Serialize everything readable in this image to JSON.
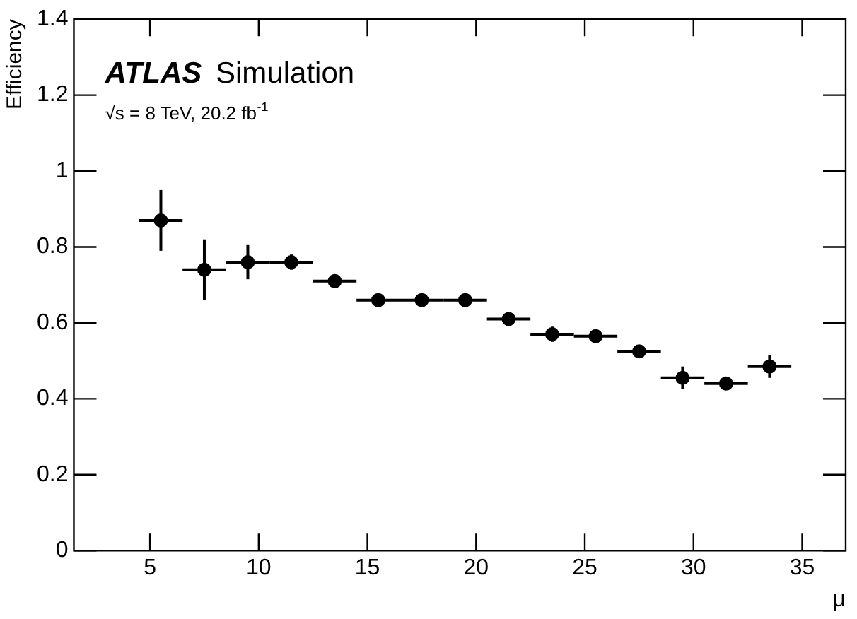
{
  "chart_data": {
    "type": "scatter",
    "xlabel": "μ",
    "ylabel": "Efficiency",
    "annotations": [
      "ATLAS Simulation",
      "√s = 8 TeV, 20.2 fb$^{-1}$"
    ],
    "x": [
      5.5,
      7.5,
      9.5,
      11.5,
      13.5,
      15.5,
      17.5,
      19.5,
      21.5,
      23.5,
      25.5,
      27.5,
      29.5,
      31.5,
      33.5
    ],
    "series": [
      {
        "color": "#000000",
        "values": [
          0.87,
          0.74,
          0.76,
          0.76,
          0.71,
          0.66,
          0.66,
          0.66,
          0.61,
          0.57,
          0.565,
          0.525,
          0.455,
          0.44,
          0.485
        ],
        "errors": [
          0.08,
          0.08,
          0.045,
          0.02,
          0.01,
          0.01,
          0.015,
          0.01,
          0.01,
          0.02,
          0.01,
          0.015,
          0.03,
          0.015,
          0.03
        ],
        "xerrors": [
          1,
          1,
          1,
          1,
          1,
          1,
          1,
          1,
          1,
          1,
          1,
          1,
          1,
          1,
          1
        ]
      }
    ],
    "xlim": [
      1.5,
      37
    ],
    "xticks": [
      5,
      10,
      15,
      20,
      25,
      30,
      35
    ],
    "ylim": [
      0,
      1.4
    ],
    "yticks": [
      0,
      0.2,
      0.4,
      0.6,
      0.8,
      1,
      1.2,
      1.4
    ],
    "marker": "circle",
    "legend": false,
    "grid": false
  }
}
